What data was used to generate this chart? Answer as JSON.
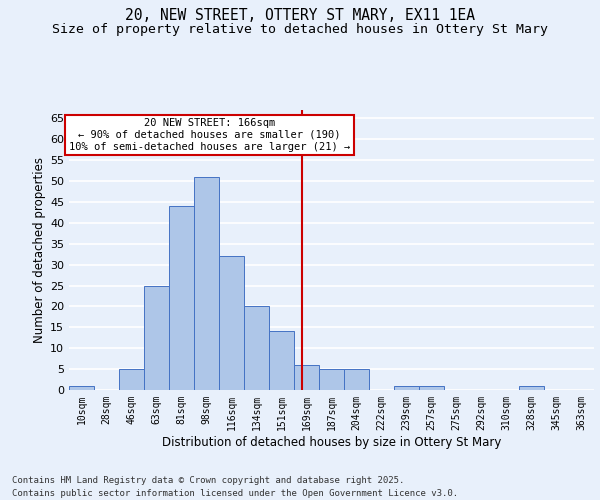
{
  "title_line1": "20, NEW STREET, OTTERY ST MARY, EX11 1EA",
  "title_line2": "Size of property relative to detached houses in Ottery St Mary",
  "xlabel": "Distribution of detached houses by size in Ottery St Mary",
  "ylabel": "Number of detached properties",
  "bin_labels": [
    "10sqm",
    "28sqm",
    "46sqm",
    "63sqm",
    "81sqm",
    "98sqm",
    "116sqm",
    "134sqm",
    "151sqm",
    "169sqm",
    "187sqm",
    "204sqm",
    "222sqm",
    "239sqm",
    "257sqm",
    "275sqm",
    "292sqm",
    "310sqm",
    "328sqm",
    "345sqm",
    "363sqm"
  ],
  "bar_heights": [
    1,
    0,
    5,
    25,
    44,
    51,
    32,
    20,
    14,
    6,
    5,
    5,
    0,
    1,
    1,
    0,
    0,
    0,
    1,
    0,
    0
  ],
  "bar_color": "#aec6e8",
  "bar_edgecolor": "#4472c4",
  "background_color": "#e8f0fb",
  "grid_color": "#ffffff",
  "vline_color": "#cc0000",
  "annotation_title": "20 NEW STREET: 166sqm",
  "annotation_line1": "← 90% of detached houses are smaller (190)",
  "annotation_line2": "10% of semi-detached houses are larger (21) →",
  "annotation_box_color": "#cc0000",
  "ylim": [
    0,
    67
  ],
  "yticks": [
    0,
    5,
    10,
    15,
    20,
    25,
    30,
    35,
    40,
    45,
    50,
    55,
    60,
    65
  ],
  "footer_line1": "Contains HM Land Registry data © Crown copyright and database right 2025.",
  "footer_line2": "Contains public sector information licensed under the Open Government Licence v3.0.",
  "title_fontsize": 10.5,
  "subtitle_fontsize": 9.5,
  "axis_label_fontsize": 8.5,
  "tick_fontsize": 7,
  "annotation_fontsize": 7.5,
  "footer_fontsize": 6.5
}
